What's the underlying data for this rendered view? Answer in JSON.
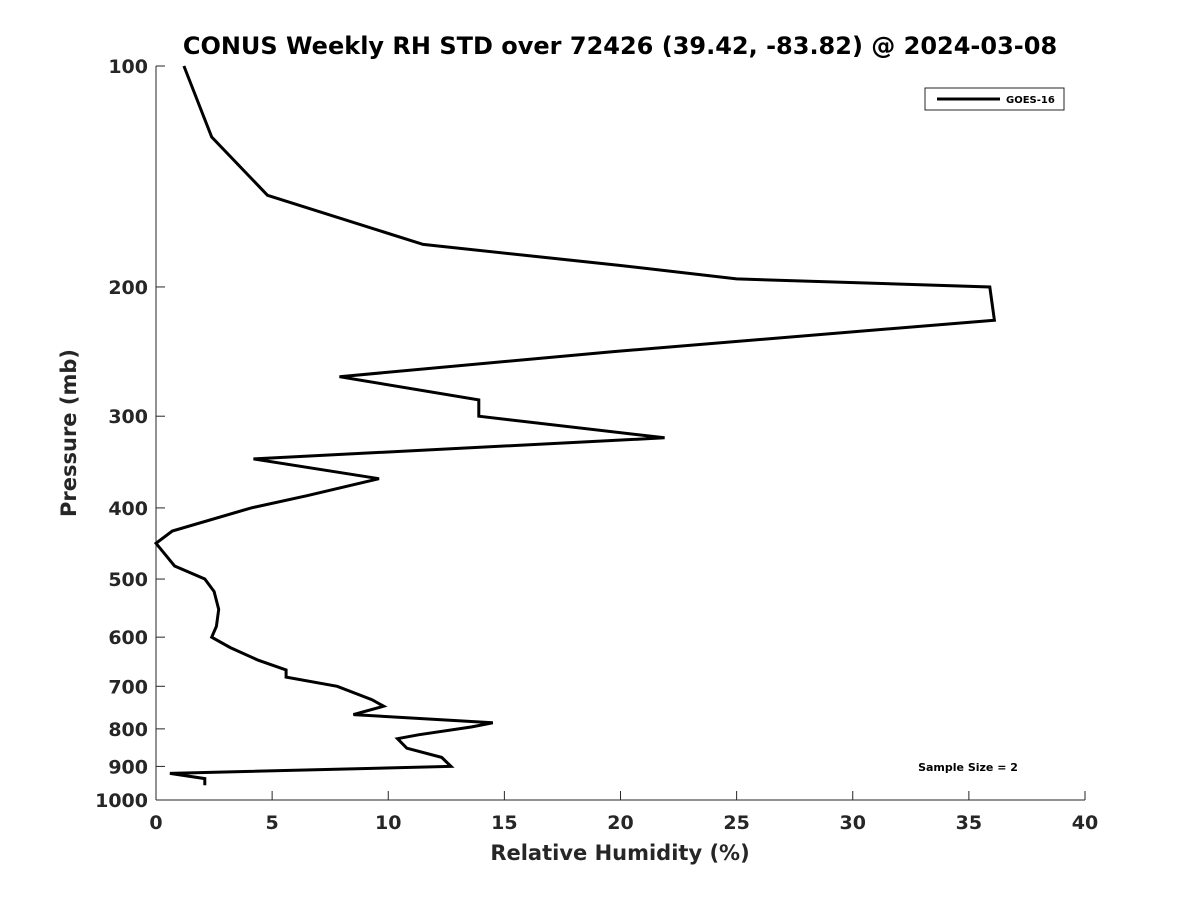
{
  "chart_data": {
    "type": "line",
    "title": "CONUS Weekly RH STD over 72426 (39.42, -83.82) @ 2024-03-08",
    "xlabel": "Relative Humidity (%)",
    "ylabel": "Pressure (mb)",
    "xlim": [
      0,
      40
    ],
    "ylim": [
      100,
      1000
    ],
    "y_scale": "log",
    "y_reversed": true,
    "x_ticks": [
      "0",
      "5",
      "10",
      "15",
      "20",
      "25",
      "30",
      "35",
      "40"
    ],
    "y_ticks": [
      "100",
      "200",
      "300",
      "400",
      "500",
      "600",
      "700",
      "800",
      "900",
      "1000"
    ],
    "grid": false,
    "legend_position": "top-right",
    "annotation": "Sample Size = 2",
    "series": [
      {
        "name": "GOES-16",
        "color": "#000000",
        "points": [
          [
            1.2,
            100
          ],
          [
            2.4,
            125
          ],
          [
            4.8,
            150
          ],
          [
            11.5,
            175
          ],
          [
            20.0,
            187
          ],
          [
            25.0,
            195
          ],
          [
            35.9,
            200
          ],
          [
            36.1,
            222
          ],
          [
            19.7,
            245
          ],
          [
            7.9,
            265
          ],
          [
            13.9,
            285
          ],
          [
            13.9,
            300
          ],
          [
            21.9,
            321
          ],
          [
            4.2,
            343
          ],
          [
            9.6,
            365
          ],
          [
            6.5,
            385
          ],
          [
            4.1,
            400
          ],
          [
            0.7,
            430
          ],
          [
            0.0,
            447
          ],
          [
            0.8,
            480
          ],
          [
            2.1,
            500
          ],
          [
            2.5,
            520
          ],
          [
            2.7,
            550
          ],
          [
            2.6,
            580
          ],
          [
            2.4,
            600
          ],
          [
            3.2,
            620
          ],
          [
            4.4,
            645
          ],
          [
            5.6,
            665
          ],
          [
            5.6,
            680
          ],
          [
            7.8,
            700
          ],
          [
            9.3,
            730
          ],
          [
            9.8,
            745
          ],
          [
            8.5,
            765
          ],
          [
            14.5,
            785
          ],
          [
            13.6,
            795
          ],
          [
            11.3,
            815
          ],
          [
            10.4,
            825
          ],
          [
            10.8,
            850
          ],
          [
            12.3,
            875
          ],
          [
            12.7,
            900
          ],
          [
            0.6,
            920
          ],
          [
            2.1,
            935
          ],
          [
            2.1,
            955
          ]
        ]
      }
    ]
  }
}
